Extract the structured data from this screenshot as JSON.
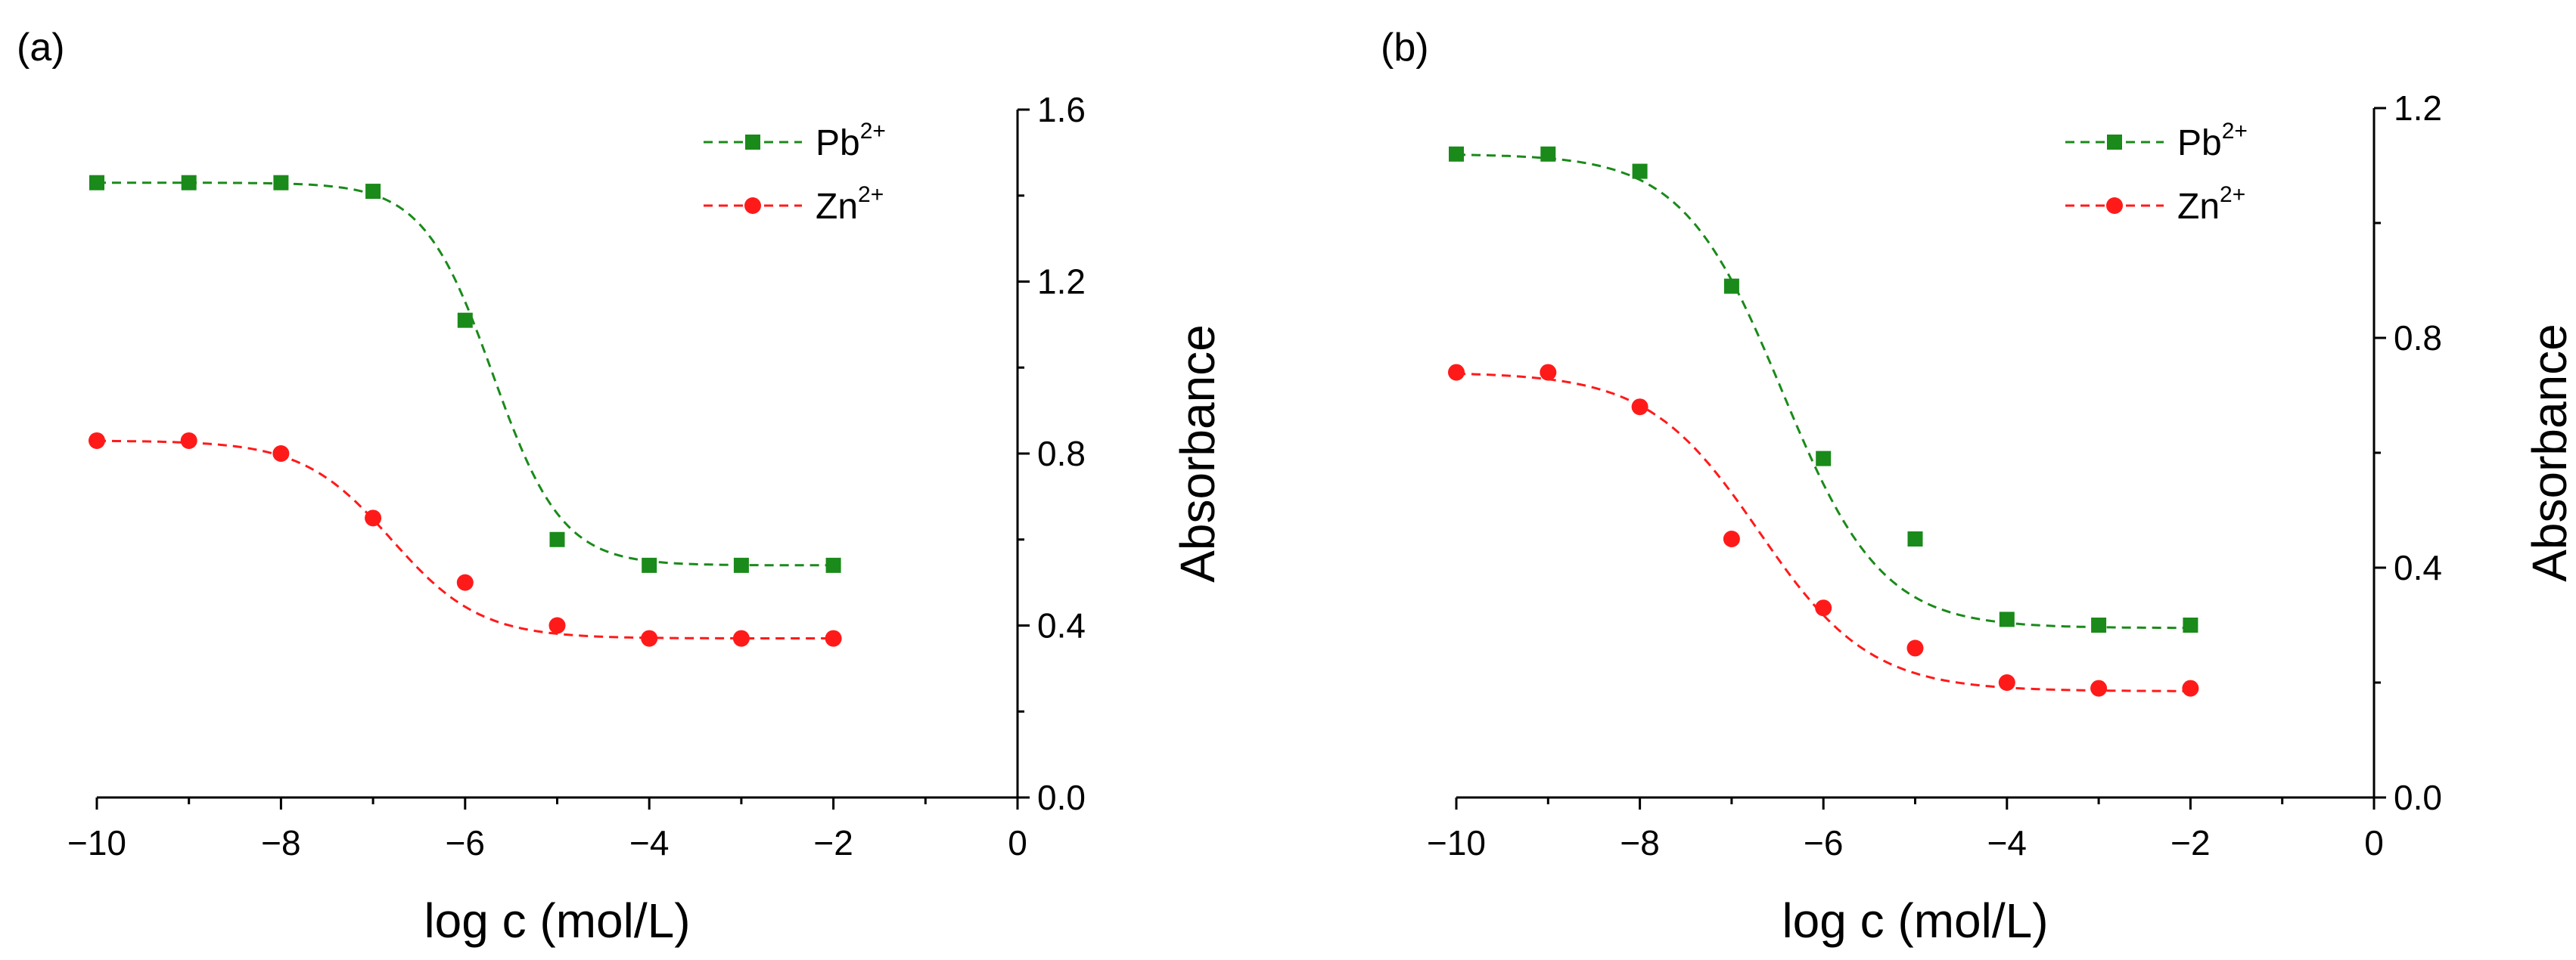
{
  "colors": {
    "pb": "#1a8a1a",
    "zn": "#ff1a1a",
    "axis": "#000000"
  },
  "chart_data": [
    {
      "panel_label": "(a)",
      "type": "line",
      "xlabel": "log c (mol/L)",
      "ylabel": "Absorbance",
      "xlim": [
        -10,
        0
      ],
      "ylim": [
        0,
        1.6
      ],
      "x_ticks": [
        "−10",
        "−8",
        "−6",
        "−4",
        "−2",
        "0"
      ],
      "x_tick_values": [
        -10,
        -8,
        -6,
        -4,
        -2,
        0
      ],
      "y_ticks": [
        "0.0",
        "0.4",
        "0.8",
        "1.2",
        "1.6"
      ],
      "y_tick_values": [
        0,
        0.4,
        0.8,
        1.2,
        1.6
      ],
      "y_axis_side": "right",
      "legend_position": "top-right",
      "series": [
        {
          "name": "Pb",
          "sup": "2+",
          "marker": "square",
          "color": "#1a8a1a",
          "x": [
            -10,
            -9,
            -8,
            -7,
            -6,
            -5,
            -4,
            -3,
            -2
          ],
          "values": [
            1.43,
            1.43,
            1.43,
            1.41,
            1.11,
            0.6,
            0.54,
            0.54,
            0.54
          ],
          "fit": {
            "top": 1.43,
            "bottom": 0.54,
            "x0": -5.7,
            "p": 1.15
          }
        },
        {
          "name": "Zn",
          "sup": "2+",
          "marker": "circle",
          "color": "#ff1a1a",
          "x": [
            -10,
            -9,
            -8,
            -7,
            -6,
            -5,
            -4,
            -3,
            -2
          ],
          "values": [
            0.83,
            0.83,
            0.8,
            0.65,
            0.5,
            0.4,
            0.37,
            0.37,
            0.37
          ],
          "fit": {
            "top": 0.83,
            "bottom": 0.37,
            "x0": -6.8,
            "p": 0.9
          }
        }
      ]
    },
    {
      "panel_label": "(b)",
      "type": "line",
      "xlabel": "log c (mol/L)",
      "ylabel": "Absorbance",
      "xlim": [
        -10,
        0
      ],
      "ylim": [
        0,
        1.2
      ],
      "x_ticks": [
        "−10",
        "−8",
        "−6",
        "−4",
        "−2",
        "0"
      ],
      "x_tick_values": [
        -10,
        -8,
        -6,
        -4,
        -2,
        0
      ],
      "y_ticks": [
        "0.0",
        "0.4",
        "0.8",
        "1.2"
      ],
      "y_tick_values": [
        0,
        0.4,
        0.8,
        1.2
      ],
      "y_axis_side": "right",
      "legend_position": "top-right",
      "series": [
        {
          "name": "Pb",
          "sup": "2+",
          "marker": "square",
          "color": "#1a8a1a",
          "x": [
            -10,
            -9,
            -8,
            -7,
            -6,
            -5,
            -4,
            -3,
            -2
          ],
          "values": [
            1.12,
            1.12,
            1.09,
            0.89,
            0.59,
            0.45,
            0.31,
            0.3,
            0.3
          ],
          "fit": {
            "top": 1.12,
            "bottom": 0.295,
            "x0": -6.45,
            "p": 0.8
          }
        },
        {
          "name": "Zn",
          "sup": "2+",
          "marker": "circle",
          "color": "#ff1a1a",
          "x": [
            -10,
            -9,
            -8,
            -7,
            -6,
            -5,
            -4,
            -3,
            -2
          ],
          "values": [
            0.74,
            0.74,
            0.68,
            0.45,
            0.33,
            0.26,
            0.2,
            0.19,
            0.19
          ],
          "fit": {
            "top": 0.74,
            "bottom": 0.185,
            "x0": -6.7,
            "p": 0.72
          }
        }
      ]
    }
  ]
}
